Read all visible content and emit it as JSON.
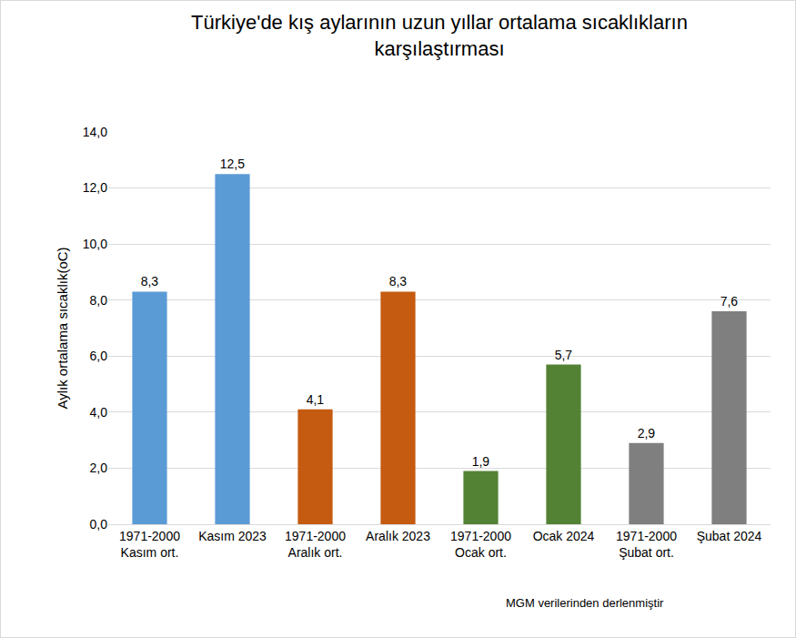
{
  "chart_data": {
    "type": "bar",
    "title": "Türkiye'de kış aylarının uzun yıllar ortalama sıcaklıkların\nkarşılaştırması",
    "y_label": "Aylık ortalama sıcaklık(oC)",
    "categories": [
      "1971-2000\nKasım ort.",
      "Kasım 2023",
      "1971-2000\nAralık ort.",
      "Aralık 2023",
      "1971-2000\nOcak ort.",
      "Ocak 2024",
      "1971-2000\nŞubat ort.",
      "Şubat 2024"
    ],
    "values": [
      8.3,
      12.5,
      4.1,
      8.3,
      1.9,
      5.7,
      2.9,
      7.6
    ],
    "value_labels": [
      "8,3",
      "12,5",
      "4,1",
      "8,3",
      "1,9",
      "5,7",
      "2,9",
      "7,6"
    ],
    "colors": [
      "#5B9BD5",
      "#5B9BD5",
      "#C55A11",
      "#C55A11",
      "#548235",
      "#548235",
      "#7F7F7F",
      "#7F7F7F"
    ],
    "ylim": [
      0,
      14
    ],
    "yticks": [
      {
        "value": 0,
        "label": "0,0"
      },
      {
        "value": 2,
        "label": "2,0"
      },
      {
        "value": 4,
        "label": "4,0"
      },
      {
        "value": 6,
        "label": "6,0"
      },
      {
        "value": 8,
        "label": "8,0"
      },
      {
        "value": 10,
        "label": "10,0"
      },
      {
        "value": 12,
        "label": "12,0"
      },
      {
        "value": 14,
        "label": "14,0"
      }
    ],
    "grid": true,
    "data_labels": true,
    "annotations": [
      "MGM verilerinden derlenmiştir"
    ]
  }
}
